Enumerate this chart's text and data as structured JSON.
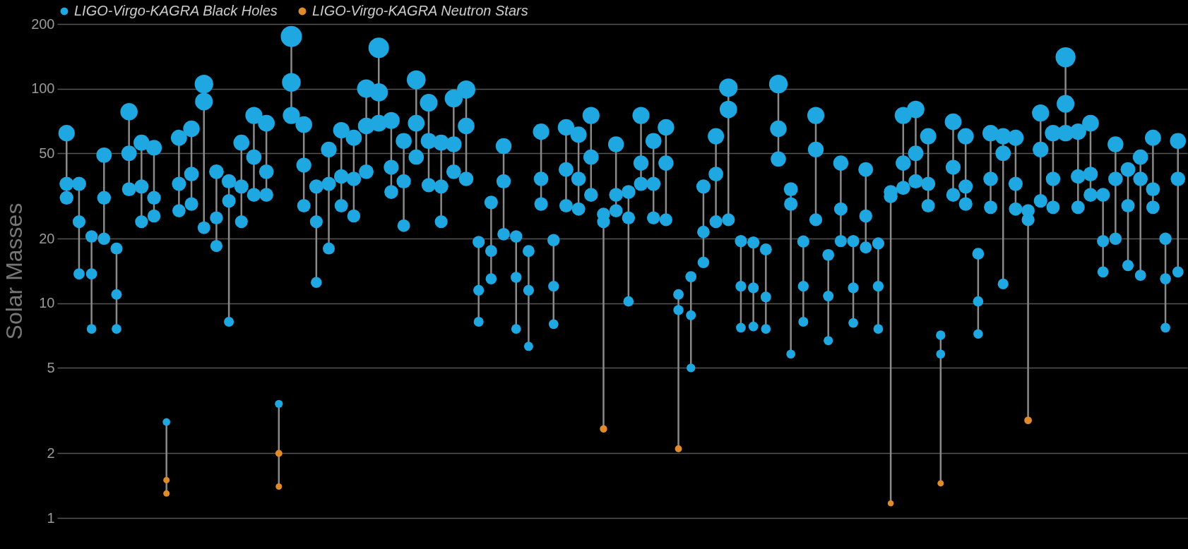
{
  "chart_data": {
    "type": "bubble",
    "ylabel": "Solar Masses",
    "categories": [
      null,
      null,
      null,
      null,
      null,
      null,
      null,
      null,
      null,
      null,
      null,
      null,
      null,
      null,
      null,
      null,
      null,
      null,
      null,
      null,
      null,
      null,
      null,
      null,
      null,
      null,
      null,
      null,
      null,
      null,
      null,
      null,
      null,
      null,
      null,
      null,
      null,
      null,
      null,
      null,
      null,
      null,
      null,
      null,
      null,
      null,
      null,
      null,
      null,
      null,
      null,
      null,
      null,
      null,
      null,
      null,
      null,
      null,
      null,
      null,
      null,
      null,
      null,
      null,
      null,
      null,
      null,
      null,
      null,
      null,
      null,
      null,
      null,
      null,
      null,
      null,
      null,
      null,
      null,
      null,
      null,
      null,
      null,
      null,
      null,
      null,
      null,
      null,
      null,
      null
    ],
    "series": [
      {
        "name": "LIGO-Virgo-KAGRA Black Holes",
        "color": "#1ea7e1",
        "values": [
          62,
          36,
          20.5,
          49,
          18,
          78,
          56,
          53,
          2.8,
          59,
          65,
          105,
          41,
          37,
          56,
          75,
          69,
          3.4,
          175,
          68,
          35,
          52,
          64,
          59,
          100,
          155,
          71,
          57,
          110,
          86,
          56,
          90,
          99,
          19.3,
          29.5,
          54,
          20.5,
          17.5,
          63,
          19.7,
          66,
          61,
          75,
          26,
          55,
          33,
          75,
          57,
          66,
          11,
          13.3,
          35,
          60,
          101,
          19.5,
          19.2,
          17.8,
          105,
          34,
          19.4,
          75,
          16.8,
          45,
          19.5,
          42,
          19,
          33,
          75,
          80,
          60,
          7.1,
          70,
          60,
          17,
          62,
          60,
          59,
          27,
          77,
          62,
          140,
          63,
          69,
          32,
          55,
          42,
          48,
          59,
          20,
          57
        ],
        "sizes": [
          0.6,
          0.45,
          0.34,
          0.53,
          0.32,
          0.67,
          0.57,
          0.55,
          0.13,
          0.58,
          0.61,
          0.77,
          0.48,
          0.46,
          0.57,
          0.65,
          0.63,
          0.14,
          1,
          0.62,
          0.45,
          0.55,
          0.6,
          0.58,
          0.76,
          0.94,
          0.64,
          0.57,
          0.79,
          0.7,
          0.57,
          0.72,
          0.75,
          0.33,
          0.41,
          0.56,
          0.34,
          0.32,
          0.6,
          0.34,
          0.61,
          0.59,
          0.65,
          0.39,
          0.56,
          0.43,
          0.65,
          0.57,
          0.61,
          0.25,
          0.28,
          0.45,
          0.59,
          0.76,
          0.33,
          0.33,
          0.32,
          0.77,
          0.44,
          0.33,
          0.65,
          0.31,
          0.51,
          0.33,
          0.49,
          0.33,
          0.43,
          0.65,
          0.68,
          0.59,
          0.2,
          0.63,
          0.59,
          0.31,
          0.6,
          0.59,
          0.58,
          0.39,
          0.66,
          0.6,
          0.89,
          0.6,
          0.63,
          0.43,
          0.56,
          0.49,
          0.52,
          0.58,
          0.34,
          0.57
        ]
      },
      {
        "color": "#1ea7e1",
        "values": [
          36,
          24,
          13.7,
          31,
          11,
          50,
          35,
          31,
          null,
          36,
          40,
          87,
          25,
          30,
          35,
          48,
          41,
          null,
          107,
          44,
          24,
          36,
          39,
          38,
          67,
          96,
          43,
          37,
          69,
          57,
          35,
          55,
          67,
          11.5,
          17.5,
          37,
          13.2,
          11.5,
          38,
          12,
          42,
          38,
          48,
          24,
          32,
          25,
          45,
          36,
          45,
          9.3,
          8.8,
          21.5,
          40,
          80,
          12,
          11.8,
          10.7,
          65,
          29,
          12,
          52,
          10.8,
          27.5,
          11.8,
          25.5,
          12,
          31.5,
          45,
          50,
          36,
          5.8,
          43,
          35,
          10.2,
          38,
          50,
          36,
          24.5,
          52,
          38,
          85,
          39,
          40,
          19.5,
          38,
          28.5,
          38,
          34,
          13,
          38
        ],
        "sizes": [
          0.45,
          0.37,
          0.28,
          0.42,
          0.25,
          0.53,
          0.45,
          0.42,
          null,
          0.45,
          0.48,
          0.7,
          0.38,
          0.41,
          0.45,
          0.52,
          0.48,
          null,
          0.78,
          0.5,
          0.37,
          0.45,
          0.47,
          0.47,
          0.62,
          0.74,
          0.5,
          0.46,
          0.63,
          0.57,
          0.45,
          0.56,
          0.62,
          0.26,
          0.32,
          0.46,
          0.27,
          0.26,
          0.47,
          0.26,
          0.49,
          0.47,
          0.52,
          0.37,
          0.43,
          0.38,
          0.51,
          0.45,
          0.51,
          0.23,
          0.22,
          0.35,
          0.48,
          0.68,
          0.26,
          0.26,
          0.25,
          0.61,
          0.41,
          0.26,
          0.55,
          0.25,
          0.4,
          0.26,
          0.38,
          0.26,
          0.42,
          0.51,
          0.53,
          0.45,
          0.18,
          0.5,
          0.45,
          0.24,
          0.47,
          0.53,
          0.45,
          0.37,
          0.55,
          0.47,
          0.7,
          0.47,
          0.48,
          0.33,
          0.47,
          0.4,
          0.47,
          0.44,
          0.27,
          0.47
        ]
      },
      {
        "color": "#1ea7e1",
        "values": [
          31,
          13.7,
          7.6,
          20,
          7.6,
          34,
          24,
          25.5,
          null,
          27,
          29,
          22.5,
          18.5,
          8.2,
          24,
          32,
          32,
          null,
          75,
          28.5,
          12.5,
          18,
          28.5,
          25.5,
          41,
          69,
          33,
          23,
          48,
          35.5,
          24,
          41,
          38,
          8.2,
          13,
          21,
          7.6,
          6.3,
          29,
          8,
          28.5,
          27.5,
          32,
          null,
          27,
          10.2,
          36,
          25,
          24.5,
          null,
          5,
          15.5,
          24,
          24.5,
          7.7,
          7.8,
          7.6,
          47,
          5.8,
          8.2,
          24.5,
          6.7,
          19.5,
          8.1,
          18.2,
          7.6,
          null,
          34.5,
          37,
          28.5,
          null,
          32,
          29,
          7.2,
          28,
          12.3,
          27.5,
          null,
          30,
          28,
          62,
          28,
          32,
          14,
          20,
          15,
          13.5,
          28,
          7.7,
          14
        ],
        "sizes": [
          0.42,
          0.28,
          0.21,
          0.34,
          0.21,
          0.44,
          0.37,
          0.38,
          null,
          0.39,
          0.41,
          0.36,
          0.33,
          0.22,
          0.37,
          0.43,
          0.43,
          null,
          0.65,
          0.4,
          0.27,
          0.32,
          0.4,
          0.38,
          0.48,
          0.63,
          0.43,
          0.36,
          0.52,
          0.45,
          0.37,
          0.48,
          0.47,
          0.22,
          0.27,
          0.35,
          0.21,
          0.19,
          0.41,
          0.21,
          0.4,
          0.4,
          0.43,
          null,
          0.39,
          0.24,
          0.45,
          0.38,
          0.37,
          null,
          0.17,
          0.3,
          0.37,
          0.37,
          0.21,
          0.21,
          0.21,
          0.52,
          0.18,
          0.22,
          0.37,
          0.19,
          0.33,
          0.21,
          0.32,
          0.21,
          null,
          0.44,
          0.46,
          0.4,
          null,
          0.43,
          0.41,
          0.2,
          0.4,
          0.26,
          0.4,
          null,
          0.41,
          0.4,
          0.6,
          0.4,
          0.43,
          0.28,
          0.34,
          0.29,
          0.28,
          0.4,
          0.21,
          0.28
        ]
      },
      {
        "name": "LIGO-Virgo-KAGRA Neutron Stars",
        "color": "#e08a2c",
        "values": [
          null,
          null,
          null,
          null,
          null,
          null,
          null,
          null,
          1.5,
          null,
          null,
          null,
          null,
          null,
          null,
          null,
          null,
          2.0,
          null,
          null,
          null,
          null,
          null,
          null,
          null,
          null,
          null,
          null,
          null,
          null,
          null,
          null,
          null,
          null,
          null,
          null,
          null,
          null,
          null,
          null,
          null,
          null,
          null,
          2.6,
          null,
          null,
          null,
          null,
          null,
          2.1,
          null,
          null,
          null,
          null,
          null,
          null,
          null,
          null,
          null,
          null,
          null,
          null,
          null,
          null,
          null,
          null,
          1.17,
          null,
          null,
          null,
          1.45,
          null,
          null,
          null,
          null,
          null,
          null,
          2.85,
          null,
          null,
          null,
          null,
          null,
          null,
          null,
          null,
          null,
          null,
          null,
          null
        ],
        "sizes": [
          null,
          null,
          null,
          null,
          null,
          null,
          null,
          null,
          0.09,
          null,
          null,
          null,
          null,
          null,
          null,
          null,
          null,
          0.11,
          null,
          null,
          null,
          null,
          null,
          null,
          null,
          null,
          null,
          null,
          null,
          null,
          null,
          null,
          null,
          null,
          null,
          null,
          null,
          null,
          null,
          null,
          null,
          null,
          null,
          0.12,
          null,
          null,
          null,
          null,
          null,
          0.11,
          null,
          null,
          null,
          null,
          null,
          null,
          null,
          null,
          null,
          null,
          null,
          null,
          null,
          null,
          null,
          null,
          0.08,
          null,
          null,
          null,
          0.09,
          null,
          null,
          null,
          null,
          null,
          null,
          0.13,
          null,
          null,
          null,
          null,
          null,
          null,
          null,
          null,
          null,
          null,
          null,
          null
        ]
      },
      {
        "color": "#e08a2c",
        "values": [
          null,
          null,
          null,
          null,
          null,
          null,
          null,
          null,
          1.3,
          null,
          null,
          null,
          null,
          null,
          null,
          null,
          null,
          1.4,
          null,
          null,
          null,
          null,
          null,
          null,
          null,
          null,
          null,
          null,
          null,
          null,
          null,
          null,
          null,
          null,
          null,
          null,
          null,
          null,
          null,
          null,
          null,
          null,
          null,
          null,
          null,
          null,
          null,
          null,
          null,
          null,
          null,
          null,
          null,
          null,
          null,
          null,
          null,
          null,
          null,
          null,
          null,
          null,
          null,
          null,
          null,
          null,
          null,
          null,
          null,
          null,
          null,
          null,
          null,
          null,
          null,
          null,
          null,
          null,
          null,
          null,
          null,
          null,
          null,
          null,
          null,
          null,
          null,
          null,
          null,
          null
        ],
        "sizes": [
          null,
          null,
          null,
          null,
          null,
          null,
          null,
          null,
          0.09,
          null,
          null,
          null,
          null,
          null,
          null,
          null,
          null,
          0.09,
          null,
          null,
          null,
          null,
          null,
          null,
          null,
          null,
          null,
          null,
          null,
          null,
          null,
          null,
          null,
          null,
          null,
          null,
          null,
          null,
          null,
          null,
          null,
          null,
          null,
          null,
          null,
          null,
          null,
          null,
          null,
          null,
          null,
          null,
          null,
          null,
          null,
          null,
          null,
          null,
          null,
          null,
          null,
          null,
          null,
          null,
          null,
          null,
          null,
          null,
          null,
          null,
          null,
          null,
          null,
          null,
          null,
          null,
          null,
          null,
          null,
          null,
          null,
          null,
          null,
          null,
          null,
          null,
          null,
          null,
          null,
          null
        ]
      }
    ],
    "log": true,
    "ylim": [
      1,
      200
    ],
    "yticks": [
      1,
      2,
      5,
      10,
      20,
      50,
      100,
      200
    ],
    "grid": "y",
    "legend": "top",
    "tick_labels": "y"
  }
}
